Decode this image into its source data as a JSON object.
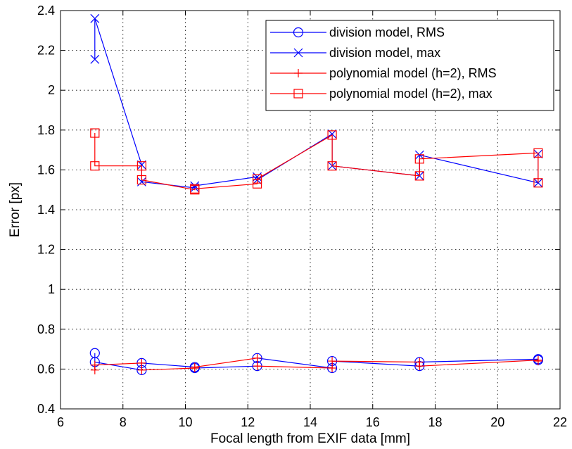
{
  "chart_data": {
    "type": "line",
    "xlabel": "Focal length from EXIF data [mm]",
    "ylabel": "Error [px]",
    "xlim": [
      6,
      22
    ],
    "ylim": [
      0.4,
      2.4
    ],
    "xticks": [
      "6",
      "8",
      "10",
      "12",
      "14",
      "16",
      "18",
      "20",
      "22"
    ],
    "yticks": [
      "0.4",
      "0.6",
      "0.8",
      "1",
      "1.2",
      "1.4",
      "1.6",
      "1.8",
      "2",
      "2.2",
      "2.4"
    ],
    "grid": true,
    "legend_position": "top-right",
    "colors": {
      "division": "#0000ff",
      "polynomial": "#ff0000"
    },
    "series": [
      {
        "name": "division model, RMS",
        "color": "#0000ff",
        "marker": "circle",
        "points": [
          [
            7.1,
            0.68
          ],
          [
            7.1,
            0.635
          ],
          [
            8.6,
            0.595
          ],
          [
            8.6,
            0.63
          ],
          [
            10.3,
            0.61
          ],
          [
            10.3,
            0.605
          ],
          [
            12.3,
            0.615
          ],
          [
            12.3,
            0.655
          ],
          [
            14.7,
            0.605
          ],
          [
            14.7,
            0.64
          ],
          [
            17.5,
            0.615
          ],
          [
            17.5,
            0.635
          ],
          [
            21.3,
            0.65
          ],
          [
            21.3,
            0.645
          ]
        ]
      },
      {
        "name": "division model, max",
        "color": "#0000ff",
        "marker": "x",
        "points": [
          [
            7.1,
            2.155
          ],
          [
            7.1,
            2.36
          ],
          [
            8.6,
            1.625
          ],
          [
            8.6,
            1.54
          ],
          [
            10.3,
            1.51
          ],
          [
            10.3,
            1.52
          ],
          [
            12.3,
            1.565
          ],
          [
            12.3,
            1.55
          ],
          [
            14.7,
            1.78
          ],
          [
            14.7,
            1.62
          ],
          [
            17.5,
            1.57
          ],
          [
            17.5,
            1.675
          ],
          [
            21.3,
            1.535
          ],
          [
            21.3,
            1.68
          ]
        ]
      },
      {
        "name": "polynomial model (h=2), RMS",
        "color": "#ff0000",
        "marker": "plus",
        "points": [
          [
            7.1,
            0.595
          ],
          [
            7.1,
            0.62
          ],
          [
            8.6,
            0.63
          ],
          [
            8.6,
            0.595
          ],
          [
            10.3,
            0.605
          ],
          [
            10.3,
            0.61
          ],
          [
            12.3,
            0.655
          ],
          [
            12.3,
            0.615
          ],
          [
            14.7,
            0.605
          ],
          [
            14.7,
            0.64
          ],
          [
            17.5,
            0.635
          ],
          [
            17.5,
            0.615
          ],
          [
            21.3,
            0.645
          ],
          [
            21.3,
            0.64
          ]
        ]
      },
      {
        "name": "polynomial model (h=2), max",
        "color": "#ff0000",
        "marker": "square",
        "points": [
          [
            7.1,
            1.785
          ],
          [
            7.1,
            1.62
          ],
          [
            8.6,
            1.62
          ],
          [
            8.6,
            1.55
          ],
          [
            10.3,
            1.5
          ],
          [
            10.3,
            1.505
          ],
          [
            12.3,
            1.53
          ],
          [
            12.3,
            1.555
          ],
          [
            14.7,
            1.775
          ],
          [
            14.7,
            1.62
          ],
          [
            17.5,
            1.57
          ],
          [
            17.5,
            1.655
          ],
          [
            21.3,
            1.685
          ],
          [
            21.3,
            1.535
          ]
        ]
      }
    ]
  }
}
